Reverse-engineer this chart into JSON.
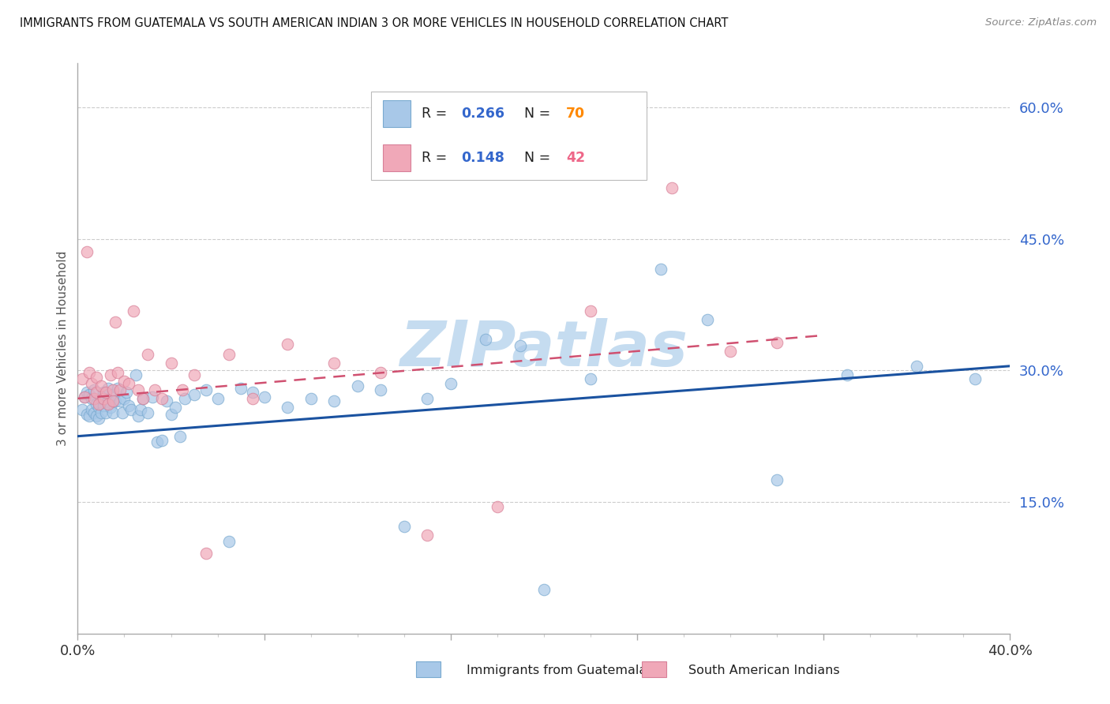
{
  "title": "IMMIGRANTS FROM GUATEMALA VS SOUTH AMERICAN INDIAN 3 OR MORE VEHICLES IN HOUSEHOLD CORRELATION CHART",
  "source": "Source: ZipAtlas.com",
  "ylabel": "3 or more Vehicles in Household",
  "x_min": 0.0,
  "x_max": 0.4,
  "y_min": 0.0,
  "y_max": 0.65,
  "y_ticks_right": [
    0.15,
    0.3,
    0.45,
    0.6
  ],
  "y_tick_labels_right": [
    "15.0%",
    "30.0%",
    "45.0%",
    "60.0%"
  ],
  "blue_R": "0.266",
  "blue_N": "70",
  "pink_R": "0.148",
  "pink_N": "42",
  "blue_dot_color": "#A8C8E8",
  "blue_dot_edge": "#7AAAD0",
  "pink_dot_color": "#F0A8B8",
  "pink_dot_edge": "#D88098",
  "blue_line_color": "#1A52A0",
  "pink_line_color": "#D05070",
  "legend_R_color": "#3366CC",
  "legend_N_blue_color": "#FF8800",
  "legend_N_pink_color": "#EE6688",
  "watermark": "ZIPatlas",
  "watermark_color": "#C5DCF0",
  "legend_label_blue": "Immigrants from Guatemala",
  "legend_label_pink": "South American Indians",
  "blue_trend_x0": 0.0,
  "blue_trend_x1": 0.4,
  "blue_trend_y0": 0.225,
  "blue_trend_y1": 0.305,
  "pink_trend_x0": 0.0,
  "pink_trend_x1": 0.32,
  "pink_trend_y0": 0.268,
  "pink_trend_y1": 0.34,
  "background_color": "#FFFFFF",
  "grid_color": "#CCCCCC",
  "title_color": "#111111",
  "blue_scatter_x": [
    0.002,
    0.003,
    0.004,
    0.004,
    0.005,
    0.005,
    0.006,
    0.006,
    0.007,
    0.007,
    0.008,
    0.008,
    0.009,
    0.009,
    0.01,
    0.01,
    0.011,
    0.011,
    0.012,
    0.013,
    0.013,
    0.014,
    0.015,
    0.015,
    0.016,
    0.017,
    0.018,
    0.019,
    0.02,
    0.021,
    0.022,
    0.023,
    0.025,
    0.026,
    0.027,
    0.028,
    0.03,
    0.032,
    0.034,
    0.036,
    0.038,
    0.04,
    0.042,
    0.044,
    0.046,
    0.05,
    0.055,
    0.06,
    0.065,
    0.07,
    0.075,
    0.08,
    0.09,
    0.1,
    0.11,
    0.12,
    0.13,
    0.14,
    0.15,
    0.16,
    0.175,
    0.19,
    0.2,
    0.22,
    0.25,
    0.27,
    0.3,
    0.33,
    0.36,
    0.385
  ],
  "blue_scatter_y": [
    0.255,
    0.27,
    0.25,
    0.275,
    0.248,
    0.272,
    0.255,
    0.268,
    0.252,
    0.278,
    0.248,
    0.262,
    0.258,
    0.245,
    0.268,
    0.252,
    0.26,
    0.275,
    0.252,
    0.265,
    0.28,
    0.258,
    0.252,
    0.272,
    0.265,
    0.28,
    0.265,
    0.252,
    0.268,
    0.275,
    0.26,
    0.255,
    0.295,
    0.248,
    0.255,
    0.268,
    0.252,
    0.27,
    0.218,
    0.22,
    0.265,
    0.25,
    0.258,
    0.225,
    0.268,
    0.272,
    0.278,
    0.268,
    0.105,
    0.28,
    0.275,
    0.27,
    0.258,
    0.268,
    0.265,
    0.282,
    0.278,
    0.122,
    0.268,
    0.285,
    0.335,
    0.328,
    0.05,
    0.29,
    0.415,
    0.358,
    0.175,
    0.295,
    0.305,
    0.29
  ],
  "pink_scatter_x": [
    0.002,
    0.003,
    0.004,
    0.005,
    0.006,
    0.007,
    0.008,
    0.008,
    0.009,
    0.01,
    0.011,
    0.012,
    0.013,
    0.014,
    0.015,
    0.015,
    0.016,
    0.017,
    0.018,
    0.02,
    0.022,
    0.024,
    0.026,
    0.028,
    0.03,
    0.033,
    0.036,
    0.04,
    0.045,
    0.05,
    0.055,
    0.065,
    0.075,
    0.09,
    0.11,
    0.13,
    0.15,
    0.18,
    0.22,
    0.255,
    0.28,
    0.3
  ],
  "pink_scatter_y": [
    0.29,
    0.27,
    0.435,
    0.298,
    0.285,
    0.268,
    0.292,
    0.275,
    0.262,
    0.282,
    0.268,
    0.275,
    0.262,
    0.295,
    0.278,
    0.265,
    0.355,
    0.298,
    0.278,
    0.288,
    0.285,
    0.368,
    0.278,
    0.268,
    0.318,
    0.278,
    0.268,
    0.308,
    0.278,
    0.295,
    0.092,
    0.318,
    0.268,
    0.33,
    0.308,
    0.298,
    0.112,
    0.145,
    0.368,
    0.508,
    0.322,
    0.332
  ]
}
